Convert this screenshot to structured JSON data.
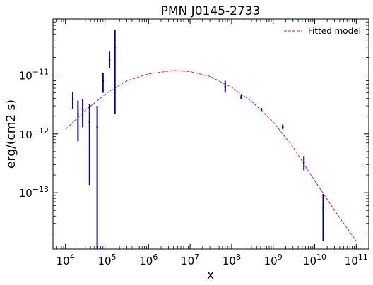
{
  "chart_data": {
    "type": "scatter",
    "title": "PMN J0145-2733",
    "xlabel": "x",
    "ylabel": "erg/(cm2 s)",
    "xscale": "log",
    "yscale": "log",
    "xlim": [
      5000,
      200000000000
    ],
    "ylim": [
      1.1e-14,
      9e-11
    ],
    "x_ticks": [
      {
        "value": 10000,
        "label": "10",
        "exp": "4"
      },
      {
        "value": 100000,
        "label": "10",
        "exp": "5"
      },
      {
        "value": 1000000,
        "label": "10",
        "exp": "6"
      },
      {
        "value": 10000000,
        "label": "10",
        "exp": "7"
      },
      {
        "value": 100000000,
        "label": "10",
        "exp": "8"
      },
      {
        "value": 1000000000,
        "label": "10",
        "exp": "9"
      },
      {
        "value": 10000000000,
        "label": "10",
        "exp": "10"
      },
      {
        "value": 100000000000,
        "label": "10",
        "exp": "11"
      }
    ],
    "y_ticks": [
      {
        "value": 1e-13,
        "label": "10",
        "exp": "−13"
      },
      {
        "value": 1e-12,
        "label": "10",
        "exp": "−12"
      },
      {
        "value": 1e-11,
        "label": "10",
        "exp": "−11"
      }
    ],
    "grid": false,
    "legend_position": "top-right",
    "series": [
      {
        "name": "Fitted model",
        "kind": "line",
        "style": "dashed",
        "color": "#dc143c",
        "x": [
          10000,
          30000,
          100000,
          300000,
          1000000,
          4000000,
          10000000,
          30000000,
          100000000,
          300000000,
          1000000000,
          3000000000,
          10000000000,
          30000000000,
          100000000000
        ],
        "y": [
          1.2e-12,
          2.5e-12,
          5e-12,
          8e-12,
          1.05e-11,
          1.2e-11,
          1.15e-11,
          9.5e-12,
          6.2e-12,
          3.6e-12,
          1.6e-12,
          6e-13,
          1.6e-13,
          5e-14,
          1.5e-14
        ]
      },
      {
        "name": "",
        "kind": "errorbar",
        "color": "#00007f",
        "points": [
          {
            "x": 15000,
            "y": 3.9e-12,
            "ylo": 2.7e-12,
            "yhi": 5.2e-12
          },
          {
            "x": 20000,
            "y": 2.2e-12,
            "ylo": 7.5e-13,
            "yhi": 3.7e-12
          },
          {
            "x": 26000,
            "y": 2.6e-12,
            "ylo": 1.3e-12,
            "yhi": 3.9e-12
          },
          {
            "x": 38000,
            "y": 1.6e-12,
            "ylo": 1.35e-13,
            "yhi": 3.2e-12
          },
          {
            "x": 58000,
            "y": 1.3e-12,
            "ylo": 1e-14,
            "yhi": 3e-12
          },
          {
            "x": 80000,
            "y": 8e-12,
            "ylo": 5e-12,
            "yhi": 1.1e-11
          },
          {
            "x": 115000,
            "y": 1.8e-11,
            "ylo": 1.3e-11,
            "yhi": 2.5e-11
          },
          {
            "x": 155000,
            "y": 3e-11,
            "ylo": 2.2e-12,
            "yhi": 5.8e-11
          },
          {
            "x": 70000000,
            "y": 6.3e-12,
            "ylo": 5e-12,
            "yhi": 8e-12
          },
          {
            "x": 170000000,
            "y": 4.2e-12,
            "ylo": 3.9e-12,
            "yhi": 4.6e-12
          },
          {
            "x": 520000000,
            "y": 2.6e-12,
            "ylo": 2.4e-12,
            "yhi": 2.75e-12
          },
          {
            "x": 1700000000,
            "y": 1.3e-12,
            "ylo": 1.2e-12,
            "yhi": 1.45e-12
          },
          {
            "x": 5500000000,
            "y": 3.3e-13,
            "ylo": 2.4e-13,
            "yhi": 4.2e-13
          },
          {
            "x": 16000000000,
            "y": 5.5e-14,
            "ylo": 1.5e-14,
            "yhi": 9.5e-14
          }
        ]
      }
    ]
  }
}
